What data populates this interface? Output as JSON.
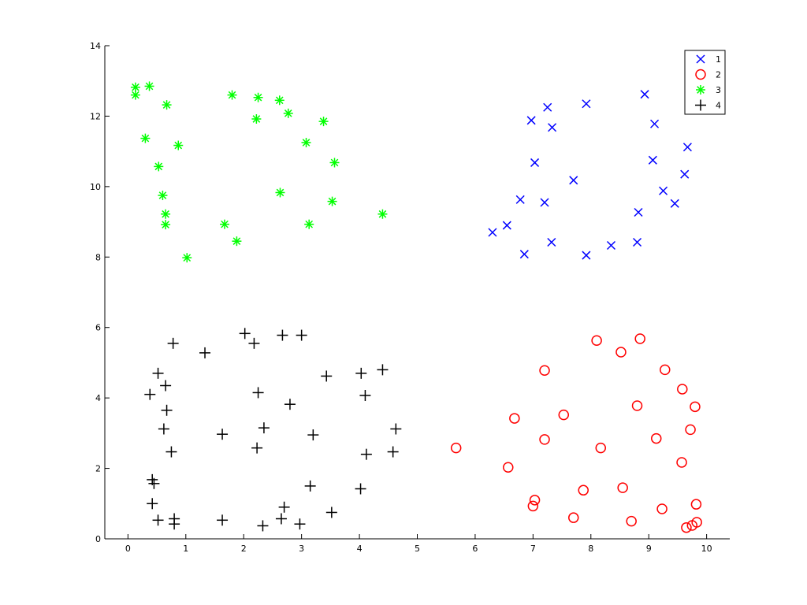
{
  "chart_data": {
    "type": "scatter",
    "xlim": [
      -0.4,
      10.4
    ],
    "ylim": [
      0,
      14
    ],
    "xticks": [
      0,
      1,
      2,
      3,
      4,
      5,
      6,
      7,
      8,
      9,
      10
    ],
    "yticks": [
      0,
      2,
      4,
      6,
      8,
      10,
      12,
      14
    ],
    "grid": false,
    "legend_position": "top-right",
    "series": [
      {
        "name": "1",
        "marker": "x",
        "color": "#0000ff",
        "points": [
          [
            6.3,
            8.7
          ],
          [
            6.55,
            8.9
          ],
          [
            6.78,
            9.63
          ],
          [
            6.85,
            8.08
          ],
          [
            6.97,
            11.88
          ],
          [
            7.03,
            10.68
          ],
          [
            7.2,
            9.55
          ],
          [
            7.25,
            12.25
          ],
          [
            7.32,
            8.42
          ],
          [
            7.33,
            11.68
          ],
          [
            7.7,
            10.18
          ],
          [
            7.92,
            12.35
          ],
          [
            7.92,
            8.05
          ],
          [
            8.35,
            8.33
          ],
          [
            8.8,
            8.42
          ],
          [
            8.82,
            9.27
          ],
          [
            8.93,
            12.62
          ],
          [
            9.07,
            10.75
          ],
          [
            9.1,
            11.78
          ],
          [
            9.25,
            9.88
          ],
          [
            9.45,
            9.52
          ],
          [
            9.62,
            10.35
          ],
          [
            9.67,
            11.12
          ]
        ]
      },
      {
        "name": "2",
        "marker": "o",
        "color": "#ff0000",
        "points": [
          [
            5.67,
            2.58
          ],
          [
            6.57,
            2.03
          ],
          [
            6.68,
            3.42
          ],
          [
            7.0,
            0.93
          ],
          [
            7.03,
            1.1
          ],
          [
            7.2,
            4.78
          ],
          [
            7.2,
            2.82
          ],
          [
            7.53,
            3.52
          ],
          [
            7.7,
            0.6
          ],
          [
            7.87,
            1.38
          ],
          [
            8.1,
            5.63
          ],
          [
            8.17,
            2.58
          ],
          [
            8.52,
            5.3
          ],
          [
            8.55,
            1.45
          ],
          [
            8.7,
            0.5
          ],
          [
            8.8,
            3.78
          ],
          [
            8.85,
            5.68
          ],
          [
            9.13,
            2.85
          ],
          [
            9.23,
            0.85
          ],
          [
            9.28,
            4.8
          ],
          [
            9.57,
            2.17
          ],
          [
            9.58,
            4.25
          ],
          [
            9.65,
            0.32
          ],
          [
            9.72,
            3.1
          ],
          [
            9.75,
            0.38
          ],
          [
            9.8,
            3.75
          ],
          [
            9.82,
            0.98
          ],
          [
            9.83,
            0.47
          ]
        ]
      },
      {
        "name": "3",
        "marker": "asterisk",
        "color": "#00ff00",
        "points": [
          [
            0.13,
            12.82
          ],
          [
            0.13,
            12.6
          ],
          [
            0.3,
            11.37
          ],
          [
            0.37,
            12.85
          ],
          [
            0.53,
            10.57
          ],
          [
            0.6,
            9.75
          ],
          [
            0.65,
            9.22
          ],
          [
            0.65,
            8.92
          ],
          [
            0.67,
            12.32
          ],
          [
            0.87,
            11.17
          ],
          [
            1.02,
            7.98
          ],
          [
            1.67,
            8.93
          ],
          [
            1.8,
            12.6
          ],
          [
            1.88,
            8.45
          ],
          [
            2.22,
            11.92
          ],
          [
            2.25,
            12.53
          ],
          [
            2.62,
            12.45
          ],
          [
            2.63,
            9.83
          ],
          [
            2.77,
            12.08
          ],
          [
            3.08,
            11.25
          ],
          [
            3.13,
            8.93
          ],
          [
            3.38,
            11.85
          ],
          [
            3.53,
            9.58
          ],
          [
            3.57,
            10.68
          ],
          [
            4.4,
            9.22
          ]
        ]
      },
      {
        "name": "4",
        "marker": "+",
        "color": "#000000",
        "points": [
          [
            0.38,
            4.1
          ],
          [
            0.42,
            1.68
          ],
          [
            0.42,
            1.0
          ],
          [
            0.45,
            1.57
          ],
          [
            0.52,
            4.7
          ],
          [
            0.52,
            0.53
          ],
          [
            0.62,
            3.12
          ],
          [
            0.65,
            4.35
          ],
          [
            0.67,
            3.65
          ],
          [
            0.75,
            2.47
          ],
          [
            0.78,
            5.55
          ],
          [
            0.8,
            0.57
          ],
          [
            0.8,
            0.42
          ],
          [
            1.33,
            5.28
          ],
          [
            1.63,
            2.97
          ],
          [
            1.63,
            0.53
          ],
          [
            2.02,
            5.83
          ],
          [
            2.18,
            5.55
          ],
          [
            2.23,
            2.58
          ],
          [
            2.25,
            4.15
          ],
          [
            2.33,
            0.37
          ],
          [
            2.35,
            3.15
          ],
          [
            2.65,
            0.57
          ],
          [
            2.67,
            5.78
          ],
          [
            2.7,
            0.9
          ],
          [
            2.8,
            3.82
          ],
          [
            2.97,
            0.42
          ],
          [
            3.0,
            5.78
          ],
          [
            3.15,
            1.5
          ],
          [
            3.2,
            2.95
          ],
          [
            3.43,
            4.62
          ],
          [
            3.52,
            0.75
          ],
          [
            4.02,
            1.42
          ],
          [
            4.03,
            4.7
          ],
          [
            4.1,
            4.07
          ],
          [
            4.12,
            2.4
          ],
          [
            4.4,
            4.8
          ],
          [
            4.58,
            2.47
          ],
          [
            4.63,
            3.12
          ]
        ]
      }
    ]
  }
}
